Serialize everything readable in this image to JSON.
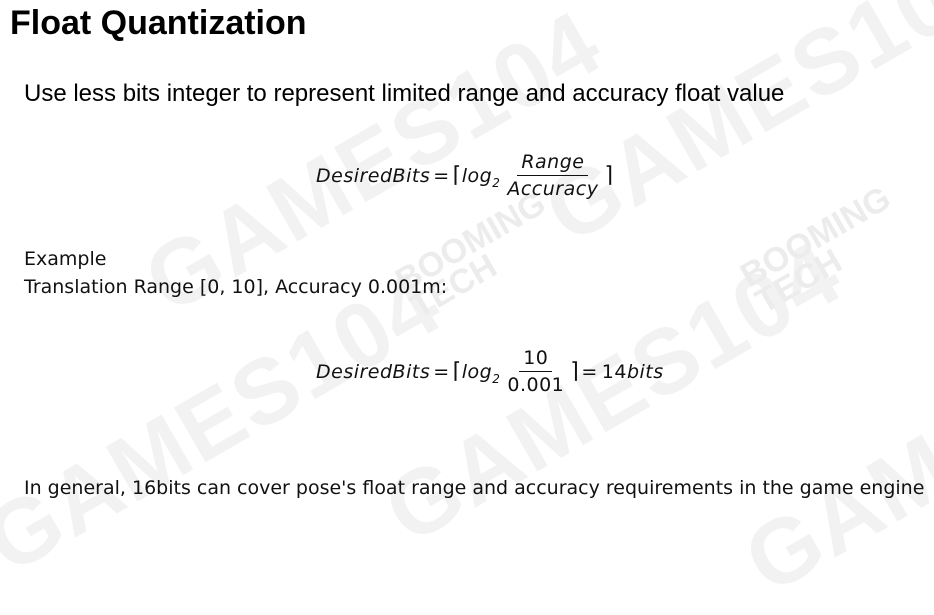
{
  "slide": {
    "title": "Float Quantization",
    "subtitle": "Use less bits integer to represent limited range and accuracy float value",
    "formula1": {
      "lhs": "DesiredBits",
      "eq": "=",
      "ceil_left": "⌈",
      "log": "log",
      "base": "2",
      "numerator": "Range",
      "denominator": "Accuracy",
      "ceil_right": "⌉"
    },
    "example_label": "Example",
    "example_desc": "Translation Range [0, 10], Accuracy 0.001m:",
    "formula2": {
      "lhs": "DesiredBits",
      "eq": "=",
      "ceil_left": "⌈",
      "log": "log",
      "base": "2",
      "numerator": "10",
      "denominator": "0.001",
      "ceil_right": "⌉",
      "eq2": "=",
      "result_num": "14",
      "result_unit": "bits"
    },
    "conclusion": "In general, 16bits can cover pose's float range and accuracy requirements in the game engine"
  },
  "watermark": {
    "brand": "GAMES104",
    "logo_text_line1": "BOOMING",
    "logo_text_line2": "TECH"
  }
}
